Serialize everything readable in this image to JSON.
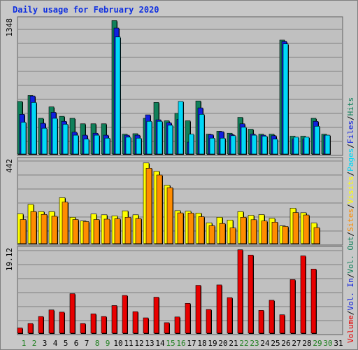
{
  "title": "Daily usage for February 2020",
  "colors": {
    "hits": "#10805a",
    "files": "#1020e0",
    "pages": "#00d8f8",
    "visits": "#ffff00",
    "sites": "#ff8c00",
    "volume": "#e80000",
    "weekday_label": "#000000",
    "weekend_label": "#208020",
    "plot_bg": "#c0c0c0",
    "grid": "#808080"
  },
  "chart_data": [
    {
      "type": "bar",
      "name": "hits-files-pages",
      "x": [
        1,
        2,
        3,
        4,
        5,
        6,
        7,
        8,
        9,
        10,
        11,
        12,
        13,
        14,
        15,
        16,
        17,
        18,
        19,
        20,
        21,
        22,
        23,
        24,
        25,
        26,
        27,
        28,
        29,
        30,
        31
      ],
      "ymax_label": "1348",
      "ylim": [
        0,
        1348
      ],
      "series": [
        {
          "name": "Hits",
          "values": [
            530,
            590,
            360,
            475,
            380,
            360,
            305,
            305,
            305,
            1345,
            200,
            205,
            360,
            520,
            335,
            410,
            335,
            535,
            200,
            230,
            210,
            370,
            250,
            200,
            200,
            1150,
            180,
            180,
            360,
            200,
            0
          ]
        },
        {
          "name": "Files",
          "values": [
            400,
            585,
            310,
            420,
            330,
            220,
            190,
            210,
            190,
            1270,
            190,
            190,
            395,
            345,
            315,
            350,
            120,
            465,
            195,
            225,
            195,
            305,
            200,
            190,
            185,
            1135,
            150,
            150,
            330,
            190,
            0
          ]
        },
        {
          "name": "Pages",
          "values": [
            320,
            520,
            260,
            360,
            300,
            190,
            150,
            190,
            160,
            1180,
            170,
            160,
            330,
            330,
            290,
            530,
            200,
            400,
            160,
            160,
            185,
            270,
            190,
            180,
            150,
            1110,
            170,
            170,
            280,
            190,
            0
          ]
        }
      ]
    },
    {
      "type": "bar",
      "name": "visits-sites",
      "x": [
        1,
        2,
        3,
        4,
        5,
        6,
        7,
        8,
        9,
        10,
        11,
        12,
        13,
        14,
        15,
        16,
        17,
        18,
        19,
        20,
        21,
        22,
        23,
        24,
        25,
        26,
        27,
        28,
        29,
        30,
        31
      ],
      "ymax_label": "442",
      "ylim": [
        0,
        442
      ],
      "series": [
        {
          "name": "Visits",
          "values": [
            158,
            208,
            170,
            170,
            244,
            140,
            120,
            157,
            153,
            147,
            174,
            153,
            428,
            384,
            310,
            175,
            172,
            162,
            110,
            140,
            125,
            170,
            150,
            154,
            134,
            94,
            188,
            164,
            109,
            0,
            0
          ]
        },
        {
          "name": "Sites",
          "values": [
            128,
            170,
            155,
            145,
            220,
            128,
            117,
            128,
            130,
            132,
            140,
            133,
            400,
            364,
            297,
            163,
            162,
            143,
            95,
            107,
            83,
            140,
            127,
            120,
            114,
            91,
            165,
            152,
            85,
            0,
            0
          ]
        }
      ]
    },
    {
      "type": "bar",
      "name": "volume",
      "x": [
        1,
        2,
        3,
        4,
        5,
        6,
        7,
        8,
        9,
        10,
        11,
        12,
        13,
        14,
        15,
        16,
        17,
        18,
        19,
        20,
        21,
        22,
        23,
        24,
        25,
        26,
        27,
        28,
        29,
        30,
        31
      ],
      "ymax_label": "19.12",
      "ylim": [
        0,
        19.12
      ],
      "series": [
        {
          "name": "Volume",
          "values": [
            1.2,
            2.2,
            3.8,
            5.3,
            4.8,
            9.0,
            2.2,
            4.4,
            3.8,
            6.3,
            8.6,
            4.9,
            3.5,
            8.2,
            2.4,
            3.7,
            6.8,
            10.9,
            5.4,
            11.0,
            8.1,
            19.0,
            17.8,
            5.2,
            7.5,
            4.2,
            12.2,
            17.6,
            14.6,
            0,
            0
          ]
        }
      ]
    }
  ],
  "legend": [
    {
      "label": "Volume",
      "color": "#e80000"
    },
    {
      "label": "Vol. In",
      "color": "#1020e0"
    },
    {
      "label": "Vol. Out",
      "color": "#10805a"
    },
    {
      "label": "Sites",
      "color": "#ff8c00"
    },
    {
      "label": "Visits",
      "color": "#ffff00"
    },
    {
      "label": "Pages",
      "color": "#00d8f8"
    },
    {
      "label": "Files",
      "color": "#1020e0"
    },
    {
      "label": "Hits",
      "color": "#10805a"
    }
  ],
  "weekend_days": [
    1,
    2,
    8,
    9,
    15,
    16,
    22,
    23,
    29,
    30
  ]
}
